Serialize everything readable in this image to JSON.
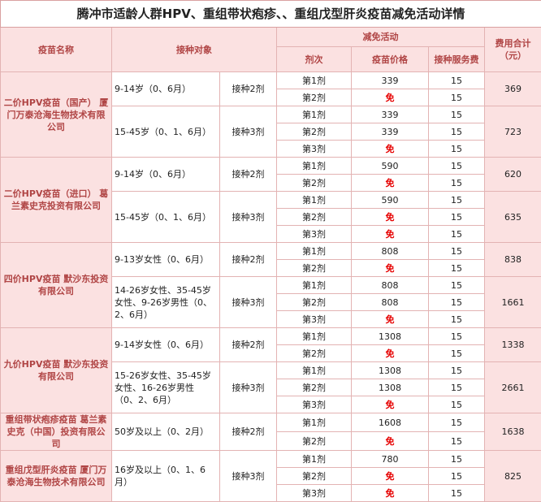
{
  "title": "腾冲市适龄人群HPV、重组带状疱疹、、重组戊型肝炎疫苗减免活动详情",
  "header": {
    "vaccine": "疫苗名称",
    "target": "接种对象",
    "activity": "减免活动",
    "dose": "剂次",
    "price": "疫苗价格",
    "fee": "接种服务费",
    "total": "费用合计（元）"
  },
  "free_color": "#e60000",
  "groups": [
    {
      "name": "二价HPV疫苗（国产） 厦门万泰沧海生物技术有限公司",
      "subgroups": [
        {
          "target": "9-14岁（0、6月）",
          "count": "接种2剂",
          "total": "369",
          "doses": [
            {
              "dose": "第1剂",
              "price": "339",
              "fee": "15"
            },
            {
              "dose": "第2剂",
              "price": "免",
              "fee": "15",
              "free": true
            }
          ]
        },
        {
          "target": "15-45岁（0、1、6月）",
          "count": "接种3剂",
          "total": "723",
          "doses": [
            {
              "dose": "第1剂",
              "price": "339",
              "fee": "15"
            },
            {
              "dose": "第2剂",
              "price": "339",
              "fee": "15"
            },
            {
              "dose": "第3剂",
              "price": "免",
              "fee": "15",
              "free": true
            }
          ]
        }
      ]
    },
    {
      "name": "二价HPV疫苗（进口） 葛兰素史克投资有限公司",
      "subgroups": [
        {
          "target": "9-14岁（0、6月）",
          "count": "接种2剂",
          "total": "620",
          "doses": [
            {
              "dose": "第1剂",
              "price": "590",
              "fee": "15"
            },
            {
              "dose": "第2剂",
              "price": "免",
              "fee": "15",
              "free": true
            }
          ]
        },
        {
          "target": "15-45岁（0、1、6月）",
          "count": "接种3剂",
          "total": "635",
          "doses": [
            {
              "dose": "第1剂",
              "price": "590",
              "fee": "15"
            },
            {
              "dose": "第2剂",
              "price": "免",
              "fee": "15",
              "free": true
            },
            {
              "dose": "第3剂",
              "price": "免",
              "fee": "15",
              "free": true
            }
          ]
        }
      ]
    },
    {
      "name": "四价HPV疫苗 默沙东投资有限公司",
      "subgroups": [
        {
          "target": "9-13岁女性（0、6月）",
          "count": "接种2剂",
          "total": "838",
          "doses": [
            {
              "dose": "第1剂",
              "price": "808",
              "fee": "15"
            },
            {
              "dose": "第2剂",
              "price": "免",
              "fee": "15",
              "free": true
            }
          ]
        },
        {
          "target": "14-26岁女性、35-45岁女性、9-26岁男性（0、2、6月）",
          "count": "接种3剂",
          "total": "1661",
          "doses": [
            {
              "dose": "第1剂",
              "price": "808",
              "fee": "15"
            },
            {
              "dose": "第2剂",
              "price": "808",
              "fee": "15"
            },
            {
              "dose": "第3剂",
              "price": "免",
              "fee": "15",
              "free": true
            }
          ]
        }
      ]
    },
    {
      "name": "九价HPV疫苗 默沙东投资有限公司",
      "subgroups": [
        {
          "target": "9-14岁女性（0、6月）",
          "count": "接种2剂",
          "total": "1338",
          "doses": [
            {
              "dose": "第1剂",
              "price": "1308",
              "fee": "15"
            },
            {
              "dose": "第2剂",
              "price": "免",
              "fee": "15",
              "free": true
            }
          ]
        },
        {
          "target": "15-26岁女性、35-45岁女性、16-26岁男性（0、2、6月）",
          "count": "接种3剂",
          "total": "2661",
          "doses": [
            {
              "dose": "第1剂",
              "price": "1308",
              "fee": "15"
            },
            {
              "dose": "第2剂",
              "price": "1308",
              "fee": "15"
            },
            {
              "dose": "第3剂",
              "price": "免",
              "fee": "15",
              "free": true
            }
          ]
        }
      ]
    },
    {
      "name": "重组带状疱疹疫苗 葛兰素史克（中国）投资有限公司",
      "subgroups": [
        {
          "target": "50岁及以上（0、2月）",
          "count": "接种2剂",
          "total": "1638",
          "doses": [
            {
              "dose": "第1剂",
              "price": "1608",
              "fee": "15"
            },
            {
              "dose": "第2剂",
              "price": "免",
              "fee": "15",
              "free": true
            }
          ]
        }
      ]
    },
    {
      "name": "重组戊型肝炎疫苗 厦门万泰沧海生物技术有限公司",
      "subgroups": [
        {
          "target": "16岁及以上（0、1、6月）",
          "count": "接种3剂",
          "total": "825",
          "doses": [
            {
              "dose": "第1剂",
              "price": "780",
              "fee": "15"
            },
            {
              "dose": "第2剂",
              "price": "免",
              "fee": "15",
              "free": true
            },
            {
              "dose": "第3剂",
              "price": "免",
              "fee": "15",
              "free": true
            }
          ]
        }
      ]
    }
  ]
}
